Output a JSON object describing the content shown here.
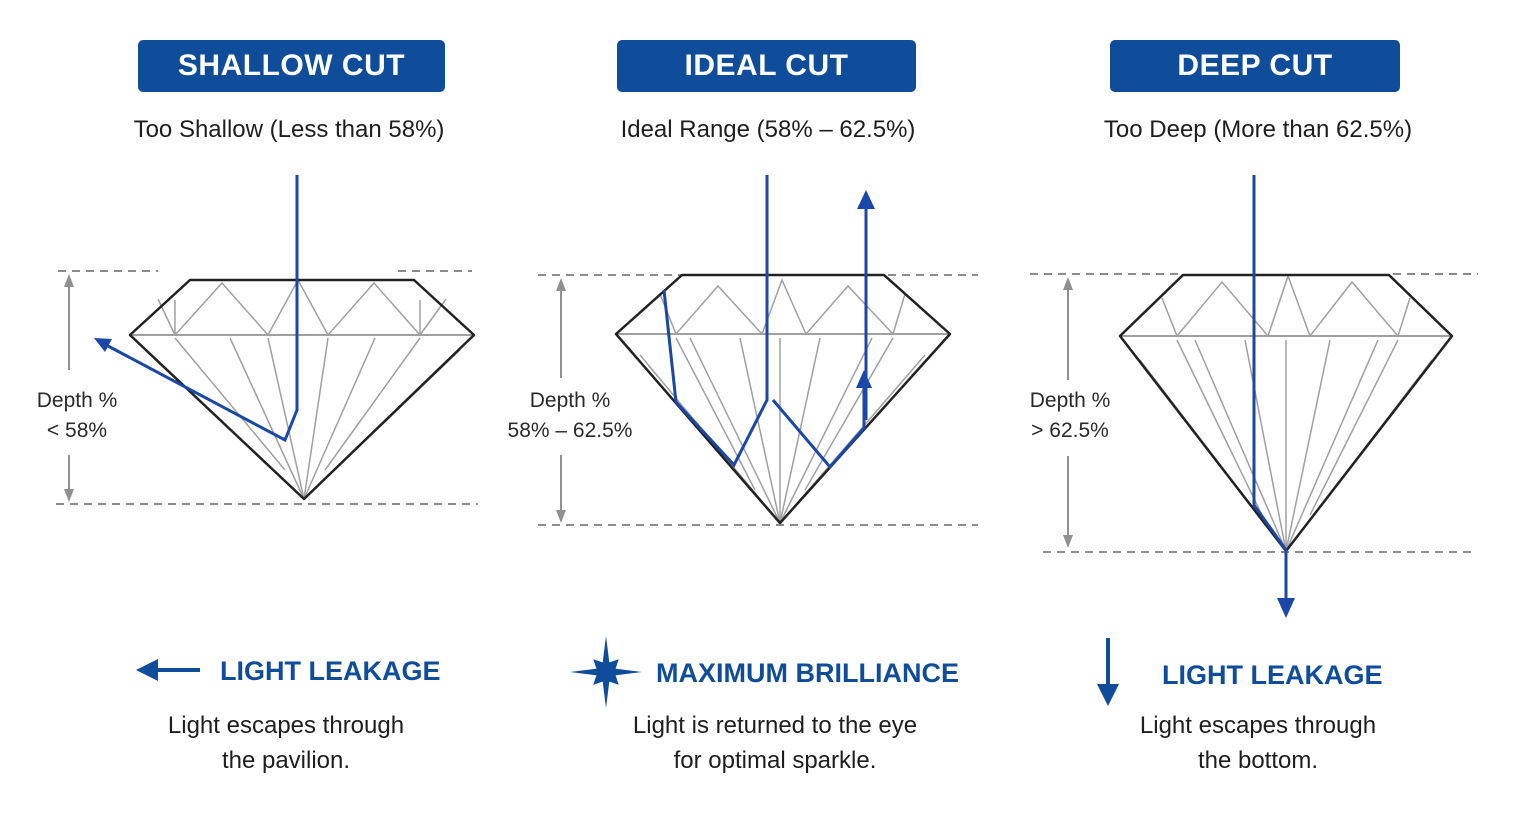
{
  "panels": [
    {
      "title": "SHALLOW CUT",
      "subtitle": "Too Shallow (Less than 58%)",
      "depth_label_line1": "Depth %",
      "depth_label_line2": "< 58%",
      "outcome_title": "LIGHT LEAKAGE",
      "outcome_icon": "left-arrow-icon",
      "desc_line1": "Light escapes through",
      "desc_line2": "the pavilion."
    },
    {
      "title": "IDEAL CUT",
      "subtitle": "Ideal Range (58% – 62.5%)",
      "depth_label_line1": "Depth %",
      "depth_label_line2": "58% – 62.5%",
      "outcome_title": "MAXIMUM BRILLIANCE",
      "outcome_icon": "sparkle-icon",
      "desc_line1": "Light is returned to the eye",
      "desc_line2": "for optimal sparkle."
    },
    {
      "title": "DEEP CUT",
      "subtitle": "Too Deep (More than 62.5%)",
      "depth_label_line1": "Depth %",
      "depth_label_line2": "> 62.5%",
      "outcome_title": "LIGHT LEAKAGE",
      "outcome_icon": "down-arrow-icon",
      "desc_line1": "Light escapes through",
      "desc_line2": "the bottom."
    }
  ],
  "colors": {
    "accent": "#0f4d9b",
    "light_ray": "#1a47a8",
    "diamond_outline": "#222222",
    "facet_lines": "#9a9a9a",
    "guide_lines": "#8c8c8c"
  }
}
